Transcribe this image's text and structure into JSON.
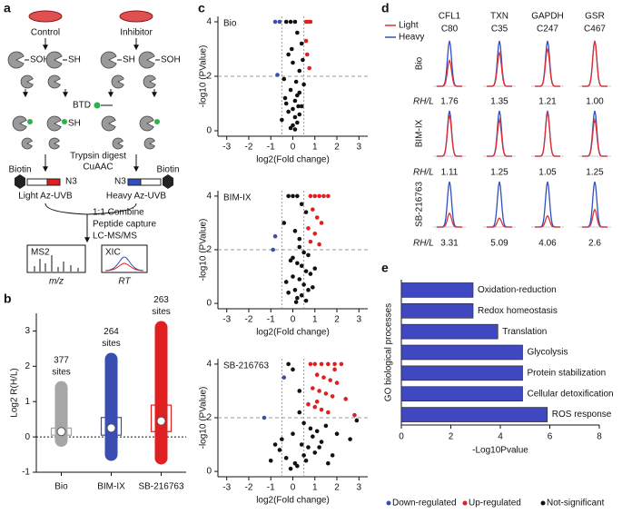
{
  "panel_labels": [
    "a",
    "b",
    "c",
    "d",
    "e"
  ],
  "workflow": {
    "conditions": [
      "Control",
      "Inhibitor"
    ],
    "groups": [
      "SOH",
      "SH"
    ],
    "probe": "BTD",
    "steps": [
      "Trypsin digest",
      "CuAAC"
    ],
    "azide": "N3",
    "biotin": "Biotin",
    "reagents": [
      "Light Az-UVB",
      "Heavy Az-UVB"
    ],
    "combine_steps": [
      "1:1 Combine",
      "Peptide capture",
      "LC-MS/MS"
    ],
    "spectra": [
      {
        "title": "MS2",
        "axis": "m/z"
      },
      {
        "title": "XIC",
        "axis": "RT"
      }
    ]
  },
  "volcano_legend": {
    "names": [
      "Down-regulated",
      "Up-regulated",
      "Not-significant"
    ],
    "colors": [
      "#3a4db0",
      "#e02020",
      "#111111"
    ]
  },
  "chart_data": [
    {
      "type": "box",
      "ylabel": "Log2 R(H/L)",
      "categories": [
        "Bio",
        "BIM-IX",
        "SB-216763"
      ],
      "colors": [
        "#a6a6a6",
        "#3a4db0",
        "#e02020"
      ],
      "median": [
        0.15,
        0.25,
        0.45
      ],
      "q1": [
        0.05,
        0.05,
        0.15
      ],
      "q3": [
        0.25,
        0.55,
        0.9
      ],
      "min": [
        -0.1,
        -0.5,
        -0.6
      ],
      "max": [
        1.4,
        2.2,
        3.1
      ],
      "counts": [
        377,
        264,
        263
      ],
      "count_unit": "sites",
      "hline": 0,
      "ylim": [
        -1,
        3.5
      ],
      "yticks": [
        -1,
        0,
        1,
        2,
        3
      ]
    },
    {
      "type": "volcano",
      "title": "Bio",
      "xlabel": "log2(Fold change)",
      "ylabel": "-log10 (PValue)",
      "xlim": [
        -3.4,
        3.4
      ],
      "ylim": [
        -0.2,
        4.2
      ],
      "xticks": [
        -3,
        -2,
        -1,
        0,
        1,
        2,
        3
      ],
      "yticks": [
        0,
        2,
        4
      ],
      "thresholds": {
        "y": 2,
        "x": [
          -0.5,
          0.5
        ]
      },
      "series": [
        {
          "x": [
            -0.8,
            -0.6,
            -0.7
          ],
          "y": [
            4,
            4,
            2.05
          ]
        },
        {
          "x": [
            0.6,
            0.7,
            0.8,
            0.6,
            0.65,
            0.75
          ],
          "y": [
            4,
            4,
            4,
            3.3,
            2.8,
            2.3
          ]
        },
        {
          "x": [
            -0.3,
            -0.1,
            0.1,
            0.2,
            0.4,
            -0.2,
            0.0,
            0.3,
            -0.4,
            0.5,
            -0.1,
            0.2,
            0.1,
            -0.3,
            0.4,
            0.0,
            -0.2,
            0.3,
            0.1,
            -0.5,
            0.2,
            0.0,
            -0.1,
            0.3,
            0.1,
            0.45,
            -0.35,
            0.15,
            -0.05,
            0.25
          ],
          "y": [
            4,
            4,
            4,
            3.6,
            3.2,
            2.8,
            2.5,
            2.2,
            1.9,
            1.7,
            1.5,
            1.3,
            1.1,
            1.0,
            0.9,
            0.8,
            0.7,
            0.6,
            0.5,
            0.4,
            0.3,
            0.2,
            0.1,
            1.4,
            0.05,
            2.6,
            1.2,
            1.8,
            3.0,
            0.9
          ]
        }
      ]
    },
    {
      "type": "volcano",
      "title": "BIM-IX",
      "xlabel": "log2(Fold change)",
      "ylabel": "-log10 (PValue)",
      "xlim": [
        -3.4,
        3.4
      ],
      "ylim": [
        -0.2,
        4.2
      ],
      "xticks": [
        -3,
        -2,
        -1,
        0,
        1,
        2,
        3
      ],
      "yticks": [
        0,
        2,
        4
      ],
      "thresholds": {
        "y": 2,
        "x": [
          -0.5,
          0.5
        ]
      },
      "series": [
        {
          "x": [
            -0.8,
            -0.9
          ],
          "y": [
            2.5,
            2.0
          ]
        },
        {
          "x": [
            0.8,
            1.0,
            1.2,
            1.4,
            1.6,
            0.9,
            1.1,
            1.3,
            0.7,
            1.0,
            0.8,
            1.2
          ],
          "y": [
            4,
            4,
            4,
            4,
            4,
            3.5,
            3.2,
            3.0,
            2.8,
            2.6,
            2.3,
            2.2
          ]
        },
        {
          "x": [
            -0.2,
            0.0,
            0.2,
            0.4,
            0.6,
            -0.4,
            0.1,
            0.3,
            0.5,
            0.7,
            -0.1,
            0.2,
            0.4,
            0.6,
            0.8,
            0.0,
            0.3,
            -0.3,
            0.5,
            0.9,
            0.1,
            -0.2,
            0.4,
            0.2,
            0.6,
            1.0,
            0.0,
            0.3,
            0.7,
            0.15
          ],
          "y": [
            4,
            4,
            4,
            3.7,
            3.4,
            3.0,
            2.7,
            2.4,
            1.9,
            1.8,
            1.6,
            1.5,
            1.4,
            1.2,
            1.1,
            1.0,
            0.9,
            0.8,
            0.7,
            0.6,
            0.5,
            0.4,
            0.3,
            0.2,
            0.1,
            1.3,
            1.7,
            2.1,
            0.5,
            0.05
          ]
        }
      ]
    },
    {
      "type": "volcano",
      "title": "SB-216763",
      "xlabel": "log2(Fold change)",
      "ylabel": "-log10 (PValue)",
      "xlim": [
        -3.4,
        3.4
      ],
      "ylim": [
        -0.2,
        4.2
      ],
      "xticks": [
        -3,
        -2,
        -1,
        0,
        1,
        2,
        3
      ],
      "yticks": [
        0,
        2,
        4
      ],
      "thresholds": {
        "y": 2,
        "x": [
          -0.5,
          0.5
        ]
      },
      "series": [
        {
          "x": [
            -1.3,
            -0.4
          ],
          "y": [
            2.0,
            3.5
          ]
        },
        {
          "x": [
            0.8,
            1.0,
            1.3,
            1.6,
            1.9,
            2.2,
            1.1,
            1.4,
            1.7,
            2.0,
            0.9,
            1.2,
            1.5,
            1.8,
            2.4,
            0.7,
            1.0,
            1.3,
            1.6,
            2.8,
            1.1,
            1.9
          ],
          "y": [
            4,
            4,
            4,
            4,
            4,
            4,
            3.6,
            3.5,
            3.4,
            3.3,
            3.1,
            3.0,
            2.9,
            2.8,
            2.7,
            2.5,
            2.4,
            2.3,
            2.2,
            2.1,
            2.6,
            3.8
          ]
        },
        {
          "x": [
            -1.0,
            -0.5,
            -0.2,
            0.0,
            0.3,
            0.5,
            0.8,
            1.1,
            1.5,
            2.0,
            2.6,
            -0.6,
            -0.3,
            0.1,
            0.4,
            0.7,
            1.0,
            1.3,
            1.8,
            2.9,
            -0.8,
            0.2,
            0.6,
            0.9,
            1.2,
            -0.1,
            0.5,
            1.6,
            0.0,
            0.3
          ],
          "y": [
            0.4,
            1.2,
            4,
            3.8,
            3.0,
            1.8,
            1.6,
            1.5,
            1.7,
            1.4,
            1.2,
            0.8,
            0.5,
            0.3,
            1.0,
            0.9,
            0.7,
            1.1,
            0.6,
            1.9,
            1.0,
            0.2,
            0.4,
            1.3,
            0.9,
            0.1,
            0.6,
            0.3,
            1.4,
            2.2
          ]
        }
      ]
    },
    {
      "type": "peaks",
      "proteins": [
        "CFL1",
        "TXN",
        "GAPDH",
        "GSR"
      ],
      "sites": [
        "C80",
        "C35",
        "C247",
        "C467"
      ],
      "conditions": [
        "Bio",
        "BIM-IX",
        "SB-216763"
      ],
      "ratio_label": "RH/L",
      "ratios": [
        [
          1.76,
          1.35,
          1.21,
          {
            "value": 1,
            "label": "1.00"
          }
        ],
        [
          1.11,
          1.25,
          1.05,
          1.25
        ],
        [
          3.31,
          5.09,
          4.06,
          2.6
        ]
      ],
      "series": [
        {
          "name": "Light",
          "color": "#e03030"
        },
        {
          "name": "Heavy",
          "color": "#3050c0"
        }
      ]
    },
    {
      "type": "barh",
      "ylabel": "GO biological processes",
      "xlabel": "-Log10Pvalue",
      "color": "#3f48c0",
      "categories": [
        "Oxidation-reduction",
        "Redox homeostasis",
        "Translation",
        "Glycolysis",
        "Protein stabilization",
        "Cellular detoxification",
        "ROS response"
      ],
      "values": [
        2.9,
        2.9,
        3.9,
        4.9,
        4.9,
        4.9,
        5.9
      ],
      "xlim": [
        0,
        8
      ],
      "xticks": [
        0,
        2,
        4,
        6,
        8
      ]
    }
  ]
}
